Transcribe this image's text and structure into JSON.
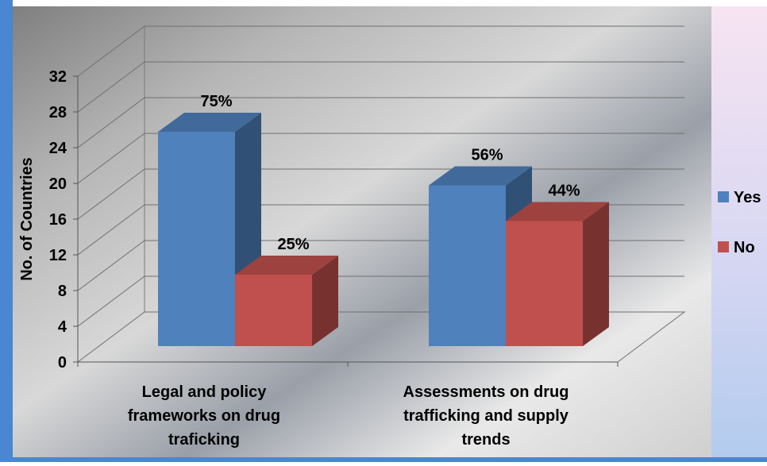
{
  "chart_data": {
    "type": "bar",
    "title": "",
    "xlabel": "",
    "ylabel": "No. of Countries",
    "ylim": [
      0,
      32
    ],
    "yticks": [
      0,
      4,
      8,
      12,
      16,
      20,
      24,
      28,
      32
    ],
    "grid": true,
    "legend_position": "right",
    "categories": [
      [
        "Legal and policy",
        "frameworks on drug",
        "traficking"
      ],
      [
        "Assessments on drug",
        "trafficking and supply",
        "trends"
      ]
    ],
    "series": [
      {
        "name": "Yes",
        "color": "#4F81BD",
        "values": [
          24,
          18
        ],
        "labels": [
          "75%",
          "56%"
        ]
      },
      {
        "name": "No",
        "color": "#C0504D",
        "values": [
          8,
          14
        ],
        "labels": [
          "25%",
          "44%"
        ]
      }
    ]
  }
}
